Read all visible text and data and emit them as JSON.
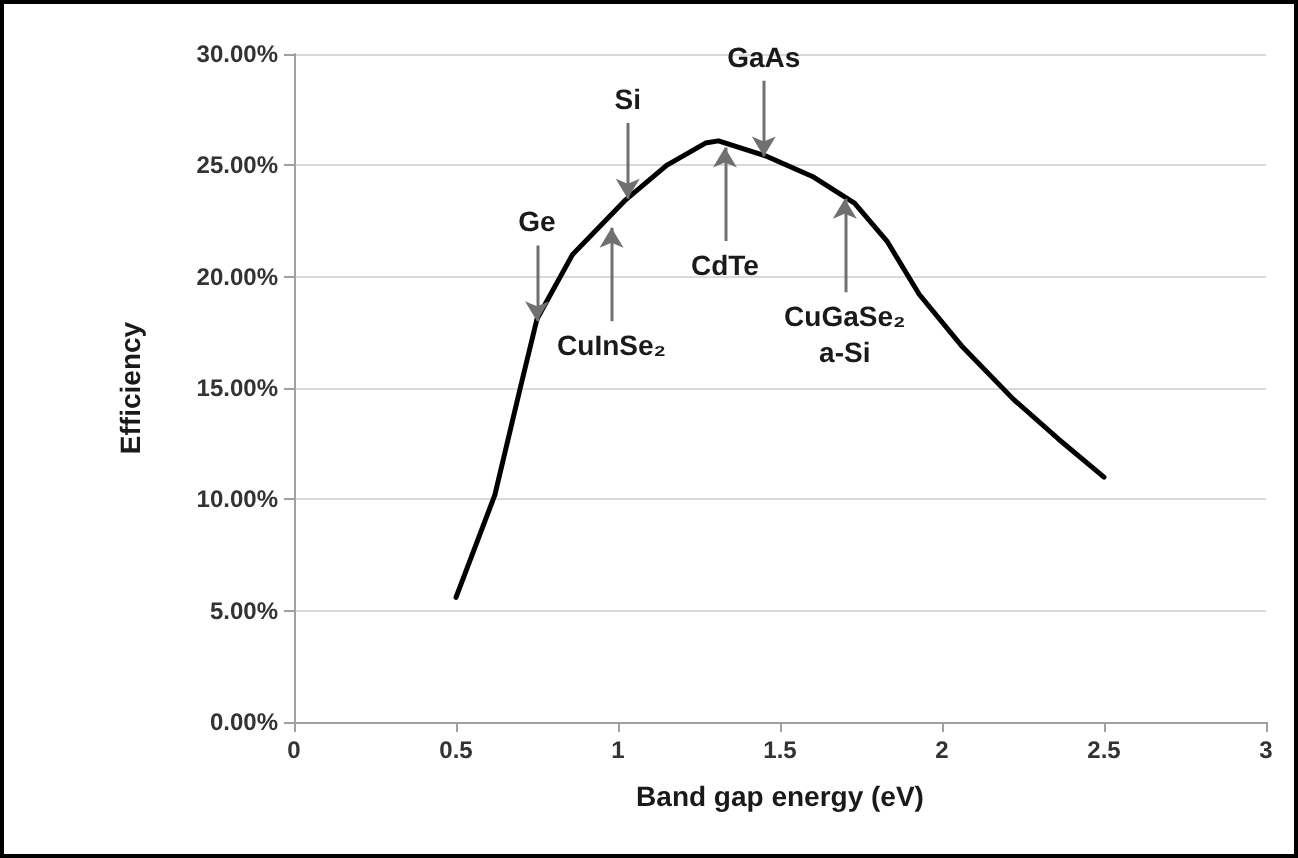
{
  "chart_data": {
    "type": "line",
    "xlabel": "Band gap energy (eV)",
    "ylabel": "Efficiency",
    "x": [
      0.5,
      0.62,
      0.7,
      0.75,
      0.86,
      1.02,
      1.15,
      1.27,
      1.31,
      1.46,
      1.6,
      1.73,
      1.83,
      1.93,
      2.06,
      2.22,
      2.36,
      2.5
    ],
    "series": [
      {
        "color": "#000000",
        "values": [
          5.6,
          10.2,
          15.1,
          18.1,
          21.0,
          23.4,
          25.0,
          26.0,
          26.1,
          25.4,
          24.5,
          23.3,
          21.6,
          19.2,
          16.9,
          14.5,
          12.7,
          11.0
        ]
      }
    ],
    "xlim": [
      0,
      3
    ],
    "xticks": [
      0,
      0.5,
      1,
      1.5,
      2,
      2.5,
      3
    ],
    "ylim": [
      0,
      30
    ],
    "yticks": [
      {
        "value": 0,
        "label": "0.00%"
      },
      {
        "value": 5,
        "label": "5.00%"
      },
      {
        "value": 10,
        "label": "10.00%"
      },
      {
        "value": 15,
        "label": "15.00%"
      },
      {
        "value": 20,
        "label": "20.00%"
      },
      {
        "value": 25,
        "label": "25.00%"
      },
      {
        "value": 30,
        "label": "30.00%"
      }
    ],
    "grid": "y",
    "marker": "none",
    "line_style": "solid",
    "annotations": [
      {
        "text": "Ge",
        "x": 0.75,
        "y": 18.0
      },
      {
        "text": "Si",
        "x": 1.03,
        "y": 23.5
      },
      {
        "text": "CuInSe₂",
        "x": 0.98,
        "y": 22.2
      },
      {
        "text": "CdTe",
        "x": 1.33,
        "y": 25.8
      },
      {
        "text": "GaAs",
        "x": 1.45,
        "y": 25.4
      },
      {
        "text": "CuGaSe₂\na-Si",
        "x": 1.7,
        "y": 23.5
      }
    ]
  }
}
